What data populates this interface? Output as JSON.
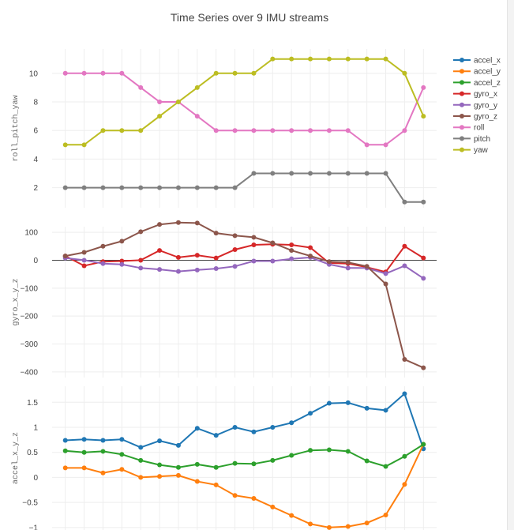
{
  "chart_data": {
    "type": "line",
    "title": "Time Series over 9 IMU streams",
    "legend_placement": "top-right",
    "grid": true,
    "legend": [
      "accel_x",
      "accel_y",
      "accel_z",
      "gyro_x",
      "gyro_y",
      "gyro_z",
      "roll",
      "pitch",
      "yaw"
    ],
    "colors": {
      "accel_x": "#1f77b4",
      "accel_y": "#ff7f0e",
      "accel_z": "#2ca02c",
      "gyro_x": "#d62728",
      "gyro_y": "#9467bd",
      "gyro_z": "#8c564b",
      "roll": "#e377c2",
      "pitch": "#7f7f7f",
      "yaw": "#bcbd22"
    },
    "x": [
      0,
      1,
      2,
      3,
      4,
      5,
      6,
      7,
      8,
      9,
      10,
      11,
      12,
      13,
      14,
      15,
      16,
      17,
      18,
      19
    ],
    "panels": [
      {
        "ylabel": "roll_pitch_yaw",
        "ylim": [
          0.6,
          11.7
        ],
        "yticks": [
          2,
          4,
          6,
          8,
          10
        ],
        "yticklabels": [
          "2",
          "4",
          "6",
          "8",
          "10"
        ],
        "series": [
          {
            "name": "roll",
            "values": [
              10,
              10,
              10,
              10,
              9,
              8,
              8,
              7,
              6,
              6,
              6,
              6,
              6,
              6,
              6,
              6,
              5,
              5,
              6,
              9
            ]
          },
          {
            "name": "pitch",
            "values": [
              2,
              2,
              2,
              2,
              2,
              2,
              2,
              2,
              2,
              2,
              3,
              3,
              3,
              3,
              3,
              3,
              3,
              3,
              1,
              1
            ]
          },
          {
            "name": "yaw",
            "values": [
              5,
              5,
              6,
              6,
              6,
              7,
              8,
              9,
              10,
              10,
              10,
              11,
              11,
              11,
              11,
              11,
              11,
              11,
              10,
              7
            ]
          }
        ]
      },
      {
        "ylabel": "gyro_x_y_z",
        "ylim": [
          -420,
          120
        ],
        "yticks": [
          100,
          0,
          -100,
          -200,
          -300,
          -400
        ],
        "yticklabels": [
          "100",
          "0",
          "−100",
          "−200",
          "−300",
          "−400"
        ],
        "zeroline": true,
        "series": [
          {
            "name": "gyro_x",
            "values": [
              15,
              -20,
              -5,
              -3,
              0,
              35,
              10,
              18,
              8,
              38,
              55,
              57,
              55,
              45,
              -10,
              -12,
              -25,
              -42,
              50,
              8
            ]
          },
          {
            "name": "gyro_y",
            "values": [
              8,
              0,
              -12,
              -15,
              -28,
              -33,
              -40,
              -35,
              -30,
              -22,
              -3,
              -3,
              5,
              10,
              -15,
              -28,
              -28,
              -48,
              -20,
              -65
            ]
          },
          {
            "name": "gyro_z",
            "values": [
              15,
              28,
              50,
              68,
              102,
              128,
              135,
              133,
              97,
              88,
              82,
              62,
              35,
              15,
              -5,
              -8,
              -22,
              -85,
              -355,
              -385
            ]
          }
        ]
      },
      {
        "ylabel": "accel_x_y_z",
        "ylim": [
          -1.05,
          1.82
        ],
        "yticks": [
          1.5,
          1,
          0.5,
          0,
          -0.5,
          -1
        ],
        "yticklabels": [
          "1.5",
          "1",
          "0.5",
          "0",
          "−0.5",
          "−1"
        ],
        "series": [
          {
            "name": "accel_x",
            "values": [
              0.74,
              0.76,
              0.74,
              0.76,
              0.6,
              0.73,
              0.64,
              0.98,
              0.84,
              1.0,
              0.91,
              1.0,
              1.09,
              1.28,
              1.48,
              1.49,
              1.38,
              1.34,
              1.67,
              0.57
            ]
          },
          {
            "name": "accel_y",
            "values": [
              0.19,
              0.19,
              0.09,
              0.16,
              0.0,
              0.02,
              0.04,
              -0.08,
              -0.15,
              -0.36,
              -0.42,
              -0.59,
              -0.76,
              -0.93,
              -1.0,
              -0.98,
              -0.91,
              -0.75,
              -0.14,
              0.66
            ]
          },
          {
            "name": "accel_z",
            "values": [
              0.53,
              0.5,
              0.52,
              0.46,
              0.34,
              0.25,
              0.2,
              0.26,
              0.2,
              0.28,
              0.27,
              0.34,
              0.44,
              0.54,
              0.55,
              0.52,
              0.33,
              0.22,
              0.42,
              0.66
            ]
          }
        ]
      }
    ]
  }
}
